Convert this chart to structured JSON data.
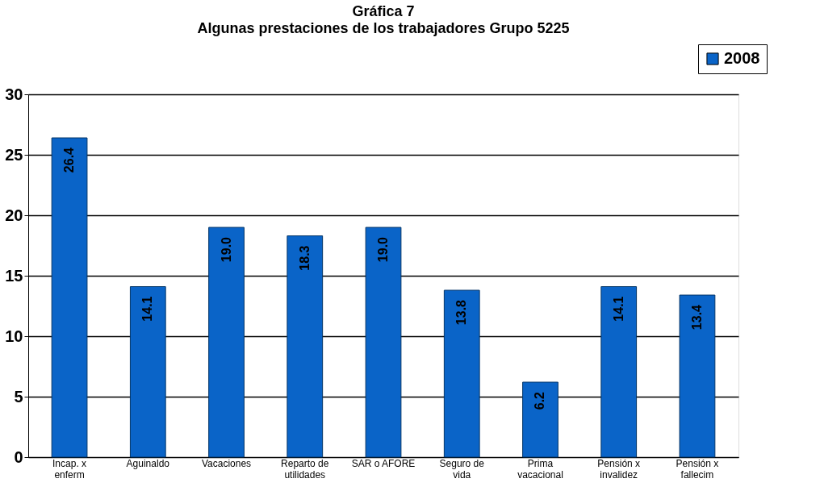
{
  "chart_data": {
    "type": "bar",
    "title": "Gráfica 7",
    "subtitle": "Algunas prestaciones de los trabajadores Grupo 5225",
    "categories": [
      "Incap. x\nenferm",
      "Aguinaldo",
      "Vacaciones",
      "Reparto de\nutilidades",
      "SAR o AFORE",
      "Seguro de\nvida",
      "Prima\nvacacional",
      "Pensión x\ninvalidez",
      "Pensión x\nfallecim"
    ],
    "series": [
      {
        "name": "2008",
        "color": "#0a64c8",
        "values": [
          26.4,
          14.1,
          19.0,
          18.3,
          19.0,
          13.8,
          6.2,
          14.1,
          13.4
        ],
        "value_labels": [
          "26.4",
          "14.1",
          "19.0",
          "18.3",
          "19.0",
          "13.8",
          "6.2",
          "14.1",
          "13.4"
        ]
      }
    ],
    "ylim": [
      0,
      30
    ],
    "yticks": [
      0,
      5,
      10,
      15,
      20,
      25,
      30
    ],
    "grid": "y",
    "legend": "top right"
  }
}
